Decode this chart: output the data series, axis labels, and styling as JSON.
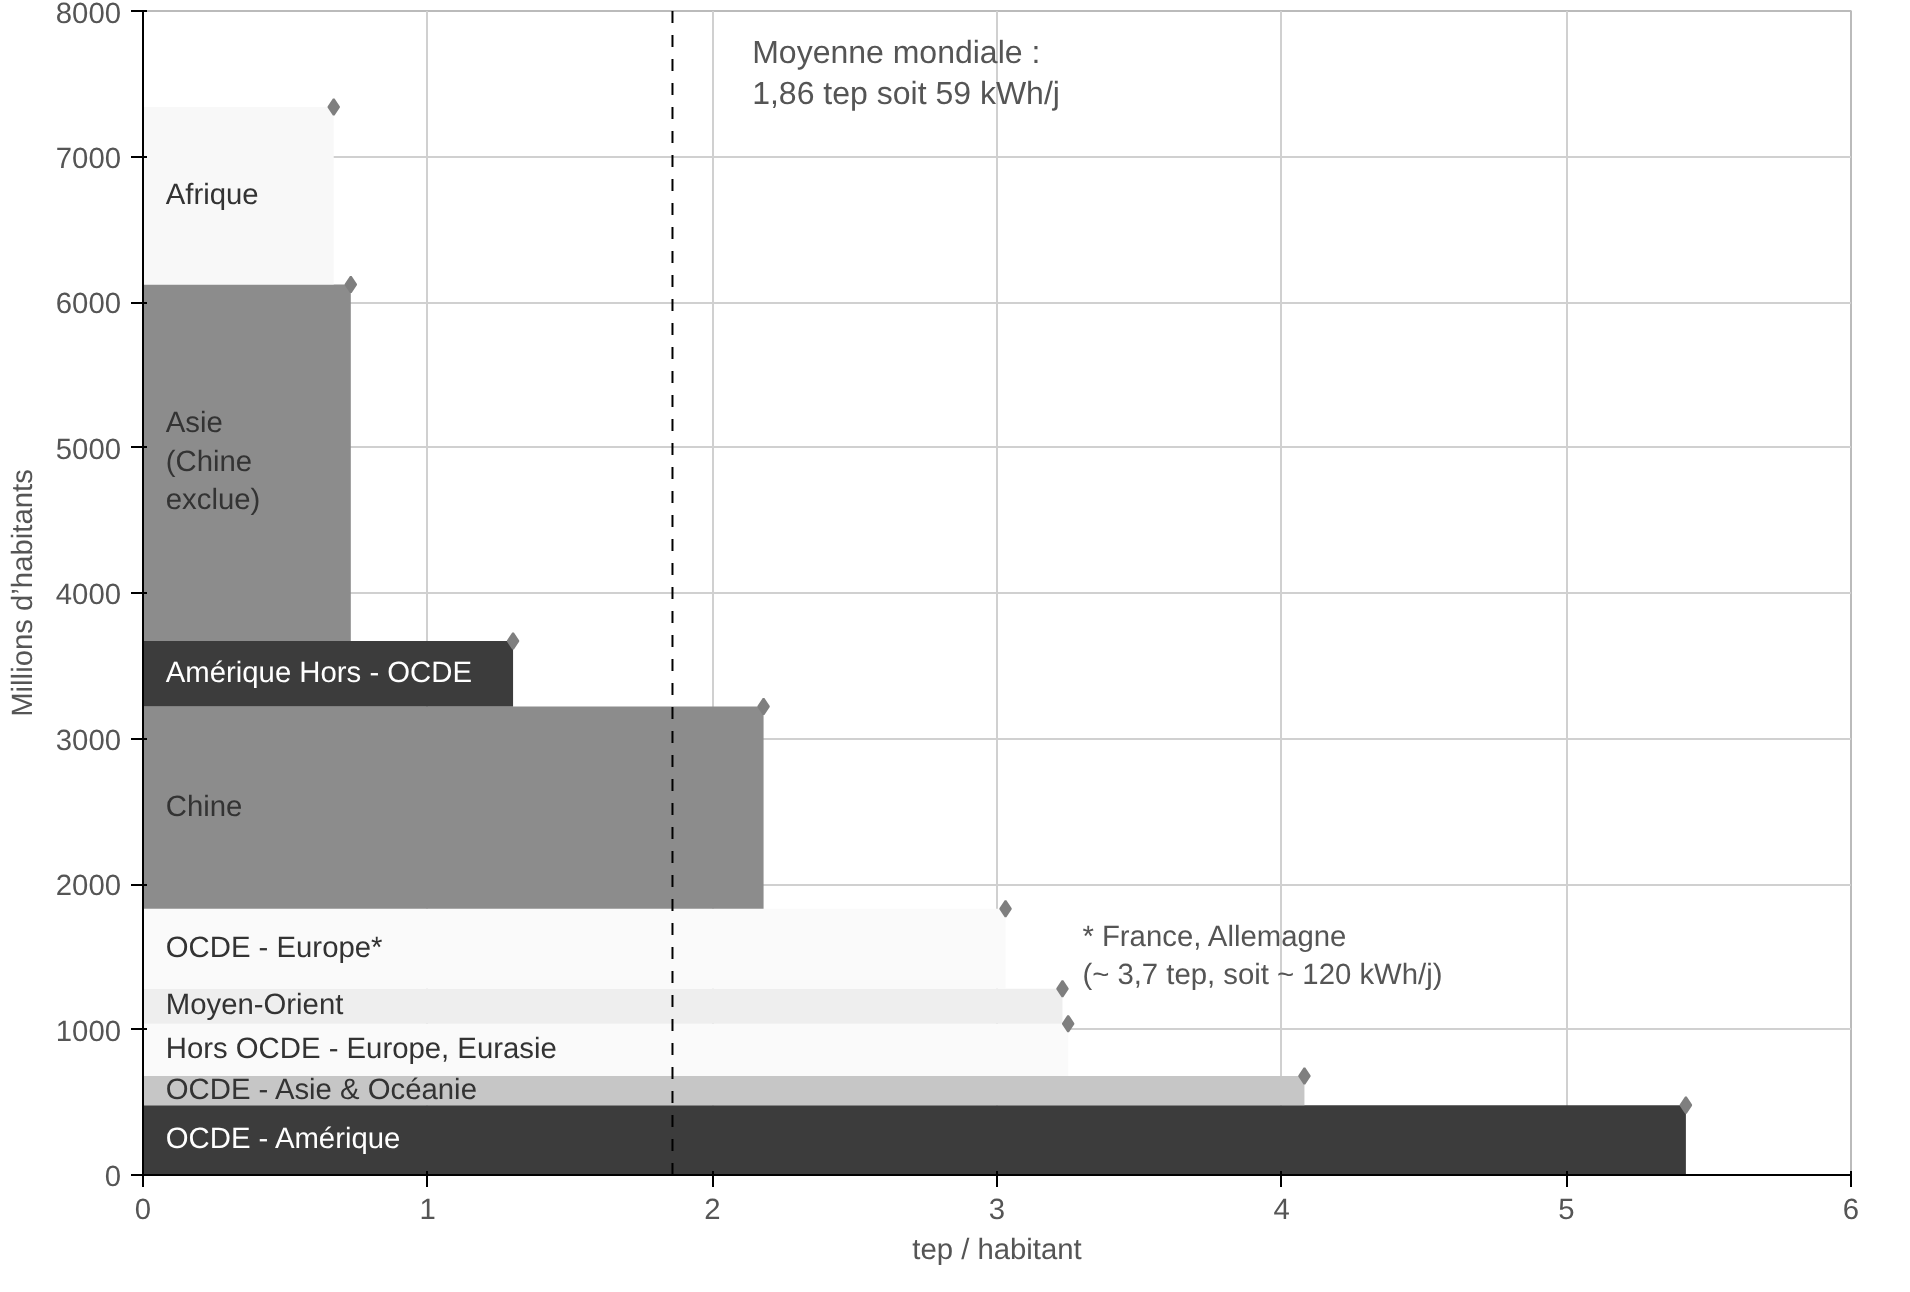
{
  "chart_data": {
    "type": "area",
    "stacked": true,
    "xlabel": "tep / habitant",
    "ylabel": "Millions d’habitants",
    "xlim": [
      0,
      6
    ],
    "ylim": [
      0,
      8000
    ],
    "xticks": [
      0,
      1,
      2,
      3,
      4,
      5,
      6
    ],
    "yticks": [
      0,
      1000,
      2000,
      3000,
      4000,
      5000,
      6000,
      7000,
      8000
    ],
    "grid": true,
    "series": [
      {
        "name": "OCDE - Amérique",
        "color": "#3c3c3c",
        "x": [
          0,
          5.42
        ],
        "values": [
          480,
          480
        ]
      },
      {
        "name": "OCDE - Asie & Océanie",
        "color": "#c6c6c6",
        "x": [
          0,
          4.08
        ],
        "values": [
          200,
          200
        ]
      },
      {
        "name": "Hors OCDE - Europe, Eurasie",
        "color": "#fafafa",
        "x": [
          0,
          3.25
        ],
        "values": [
          360,
          360
        ]
      },
      {
        "name": "Moyen-Orient",
        "color": "#eeeeee",
        "x": [
          0,
          3.23
        ],
        "values": [
          240,
          240
        ]
      },
      {
        "name": "OCDE - Europe*",
        "color": "#fafafa",
        "x": [
          0,
          3.03
        ],
        "values": [
          550,
          550
        ]
      },
      {
        "name": "Chine",
        "color": "#8c8c8c",
        "x": [
          0,
          2.18
        ],
        "values": [
          1390,
          1390
        ]
      },
      {
        "name": "Amérique Hors - OCDE",
        "color": "#3c3c3c",
        "x": [
          0,
          1.3
        ],
        "values": [
          450,
          450
        ]
      },
      {
        "name": "Asie\n(Chine\nexclue)",
        "color": "#8c8c8c",
        "x": [
          0,
          0.73
        ],
        "values": [
          2450,
          2450
        ]
      },
      {
        "name": "Afrique",
        "color": "#f8f8f8",
        "x": [
          0,
          0.67
        ],
        "values": [
          1220,
          1220
        ]
      },
      {
        "type": "scatter",
        "color": "#7f7f7f",
        "marker": "diamond",
        "x": [
          5.42,
          4.08,
          3.25,
          3.23,
          3.03,
          2.18,
          1.3,
          0.73,
          0.67
        ],
        "values": [
          480,
          680,
          1040,
          1280,
          1830,
          3220,
          3670,
          6120,
          7340
        ]
      }
    ],
    "ref_lines": [
      {
        "axis": "x",
        "value": 1.86,
        "label": "Moyenne mondiale :\n1,86 tep soit 59 kWh/j",
        "color": "#000000",
        "line_style": "dashed"
      }
    ],
    "annotations": [
      "* France, Allemagne\n(~ 3,7 tep, soit ~ 120 kWh/j)"
    ]
  }
}
